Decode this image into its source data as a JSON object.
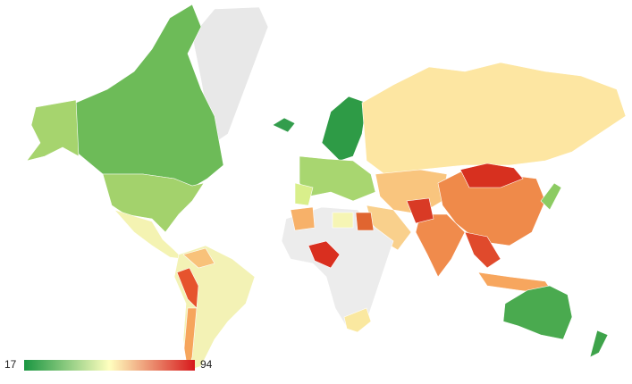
{
  "color_axis": {
    "min": 17,
    "max": 94,
    "colors": [
      "#1a9641",
      "#ffffbf",
      "#d7191c"
    ]
  }
}
